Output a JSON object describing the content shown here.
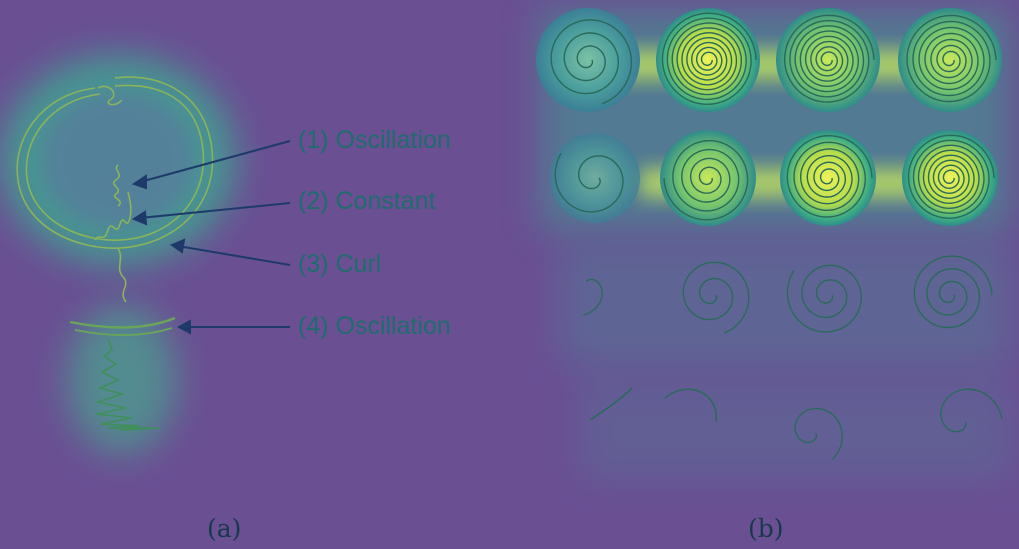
{
  "panel_a": {
    "caption": "(a)",
    "annotations": [
      {
        "label": "(1) Oscillation"
      },
      {
        "label": "(2) Constant"
      },
      {
        "label": "(3) Curl"
      },
      {
        "label": "(4) Oscillation"
      }
    ]
  },
  "panel_b": {
    "caption": "(b)",
    "rows": 4,
    "columns": 4
  },
  "colors": {
    "background": "#6a4f93",
    "heat_low": "#4a8f9a",
    "heat_high": "#e8f05a",
    "stroke": "#2a6a5a",
    "arrow": "#1e3a6a",
    "label_text": "#1f6c6c"
  }
}
